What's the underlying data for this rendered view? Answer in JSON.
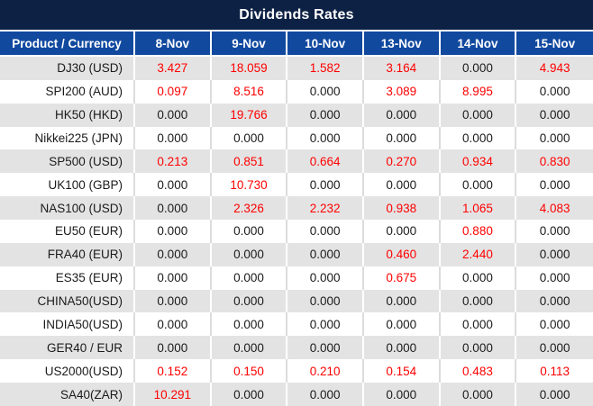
{
  "title": "Dividends Rates",
  "colors": {
    "title_bar_bg": "#0c2143",
    "header_bg": "#11499f",
    "row_alt_bg": "#e3e3e3",
    "red_value": "#ff0000",
    "text_color": "#1a1a1a"
  },
  "chart_data": {
    "type": "table",
    "title": "Dividends Rates",
    "product_header": "Product / Currency",
    "date_headers": [
      "8-Nov",
      "9-Nov",
      "10-Nov",
      "13-Nov",
      "14-Nov",
      "15-Nov"
    ],
    "zero_value": "0.000",
    "value_color_rule": "non-zero values rendered in red, zero values in dark gray/black",
    "rows": [
      {
        "product": "DJ30 (USD)",
        "values": [
          "3.427",
          "18.059",
          "1.582",
          "3.164",
          "0.000",
          "4.943"
        ]
      },
      {
        "product": "SPI200 (AUD)",
        "values": [
          "0.097",
          "8.516",
          "0.000",
          "3.089",
          "8.995",
          "0.000"
        ]
      },
      {
        "product": "HK50 (HKD)",
        "values": [
          "0.000",
          "19.766",
          "0.000",
          "0.000",
          "0.000",
          "0.000"
        ]
      },
      {
        "product": "Nikkei225 (JPN)",
        "values": [
          "0.000",
          "0.000",
          "0.000",
          "0.000",
          "0.000",
          "0.000"
        ]
      },
      {
        "product": "SP500 (USD)",
        "values": [
          "0.213",
          "0.851",
          "0.664",
          "0.270",
          "0.934",
          "0.830"
        ]
      },
      {
        "product": "UK100 (GBP)",
        "values": [
          "0.000",
          "10.730",
          "0.000",
          "0.000",
          "0.000",
          "0.000"
        ]
      },
      {
        "product": "NAS100 (USD)",
        "values": [
          "0.000",
          "2.326",
          "2.232",
          "0.938",
          "1.065",
          "4.083"
        ]
      },
      {
        "product": "EU50 (EUR)",
        "values": [
          "0.000",
          "0.000",
          "0.000",
          "0.000",
          "0.880",
          "0.000"
        ]
      },
      {
        "product": "FRA40 (EUR)",
        "values": [
          "0.000",
          "0.000",
          "0.000",
          "0.460",
          "2.440",
          "0.000"
        ]
      },
      {
        "product": "ES35 (EUR)",
        "values": [
          "0.000",
          "0.000",
          "0.000",
          "0.675",
          "0.000",
          "0.000"
        ]
      },
      {
        "product": "CHINA50(USD)",
        "values": [
          "0.000",
          "0.000",
          "0.000",
          "0.000",
          "0.000",
          "0.000"
        ]
      },
      {
        "product": "INDIA50(USD)",
        "values": [
          "0.000",
          "0.000",
          "0.000",
          "0.000",
          "0.000",
          "0.000"
        ]
      },
      {
        "product": "GER40 / EUR",
        "values": [
          "0.000",
          "0.000",
          "0.000",
          "0.000",
          "0.000",
          "0.000"
        ]
      },
      {
        "product": "US2000(USD)",
        "values": [
          "0.152",
          "0.150",
          "0.210",
          "0.154",
          "0.483",
          "0.113"
        ]
      },
      {
        "product": "SA40(ZAR)",
        "values": [
          "10.291",
          "0.000",
          "0.000",
          "0.000",
          "0.000",
          "0.000"
        ]
      }
    ]
  }
}
